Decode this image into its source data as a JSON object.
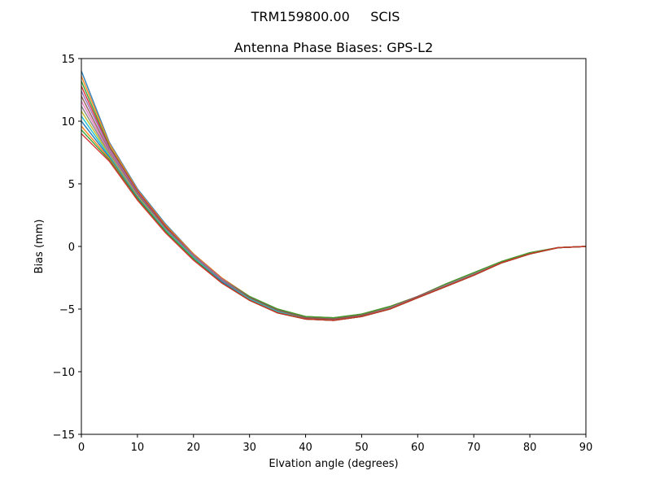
{
  "chart_data": {
    "type": "line",
    "suptitle": "TRM159800.00     SCIS",
    "title": "Antenna Phase Biases: GPS-L2",
    "xlabel": "Elvation angle (degrees)",
    "ylabel": "Bias (mm)",
    "xlim": [
      0,
      90
    ],
    "ylim": [
      -15,
      15
    ],
    "xticks": [
      0,
      10,
      20,
      30,
      40,
      50,
      60,
      70,
      80,
      90
    ],
    "yticks": [
      -15,
      -10,
      -5,
      0,
      5,
      10,
      15
    ],
    "grid": false,
    "legend": false,
    "x": [
      0,
      5,
      10,
      15,
      20,
      25,
      30,
      35,
      40,
      45,
      50,
      55,
      60,
      65,
      70,
      75,
      80,
      85,
      90
    ],
    "series_colors": [
      "#1f77b4",
      "#ff7f0e",
      "#2ca02c",
      "#d62728",
      "#9467bd",
      "#8c564b",
      "#e377c2",
      "#7f7f7f",
      "#bcbd22",
      "#17becf"
    ],
    "series": [
      {
        "values": [
          14.0,
          8.3,
          4.6,
          1.8,
          -0.6,
          -2.5,
          -4.0,
          -5.0,
          -5.6,
          -5.7,
          -5.4,
          -4.8,
          -4.0,
          -3.0,
          -2.1,
          -1.2,
          -0.5,
          -0.1,
          0.0
        ]
      },
      {
        "values": [
          13.6,
          8.2,
          4.5,
          1.7,
          -0.6,
          -2.5,
          -4.0,
          -5.0,
          -5.6,
          -5.7,
          -5.4,
          -4.8,
          -4.0,
          -3.0,
          -2.1,
          -1.2,
          -0.5,
          -0.1,
          0.0
        ]
      },
      {
        "values": [
          13.2,
          8.0,
          4.4,
          1.6,
          -0.7,
          -2.6,
          -4.0,
          -5.0,
          -5.6,
          -5.7,
          -5.4,
          -4.8,
          -4.0,
          -3.0,
          -2.1,
          -1.2,
          -0.5,
          -0.1,
          0.0
        ]
      },
      {
        "values": [
          12.8,
          7.9,
          4.4,
          1.6,
          -0.7,
          -2.6,
          -4.1,
          -5.1,
          -5.7,
          -5.8,
          -5.5,
          -4.9,
          -4.0,
          -3.1,
          -2.2,
          -1.3,
          -0.6,
          -0.1,
          0.0
        ]
      },
      {
        "values": [
          12.4,
          7.8,
          4.3,
          1.5,
          -0.7,
          -2.6,
          -4.1,
          -5.1,
          -5.7,
          -5.8,
          -5.5,
          -4.9,
          -4.0,
          -3.1,
          -2.2,
          -1.3,
          -0.6,
          -0.1,
          0.0
        ]
      },
      {
        "values": [
          12.0,
          7.6,
          4.2,
          1.5,
          -0.8,
          -2.7,
          -4.1,
          -5.1,
          -5.7,
          -5.8,
          -5.5,
          -4.9,
          -4.0,
          -3.1,
          -2.2,
          -1.3,
          -0.6,
          -0.1,
          0.0
        ]
      },
      {
        "values": [
          11.6,
          7.5,
          4.1,
          1.4,
          -0.8,
          -2.7,
          -4.2,
          -5.2,
          -5.8,
          -5.9,
          -5.6,
          -4.9,
          -4.1,
          -3.1,
          -2.2,
          -1.3,
          -0.6,
          -0.1,
          0.0
        ]
      },
      {
        "values": [
          11.2,
          7.4,
          4.1,
          1.4,
          -0.8,
          -2.7,
          -4.2,
          -5.2,
          -5.8,
          -5.9,
          -5.6,
          -4.9,
          -4.1,
          -3.1,
          -2.2,
          -1.3,
          -0.6,
          -0.1,
          0.0
        ]
      },
      {
        "values": [
          10.8,
          7.3,
          4.0,
          1.3,
          -0.9,
          -2.8,
          -4.2,
          -5.2,
          -5.8,
          -5.9,
          -5.6,
          -5.0,
          -4.1,
          -3.2,
          -2.3,
          -1.3,
          -0.6,
          -0.1,
          0.0
        ]
      },
      {
        "values": [
          10.4,
          7.2,
          3.9,
          1.3,
          -0.9,
          -2.8,
          -4.2,
          -5.2,
          -5.8,
          -5.9,
          -5.6,
          -5.0,
          -4.1,
          -3.2,
          -2.3,
          -1.3,
          -0.6,
          -0.1,
          0.0
        ]
      },
      {
        "values": [
          10.0,
          7.1,
          3.9,
          1.2,
          -1.0,
          -2.8,
          -4.3,
          -5.3,
          -5.8,
          -5.9,
          -5.6,
          -5.0,
          -4.1,
          -3.2,
          -2.3,
          -1.3,
          -0.6,
          -0.1,
          0.0
        ]
      },
      {
        "values": [
          9.6,
          7.0,
          3.8,
          1.2,
          -1.0,
          -2.9,
          -4.3,
          -5.3,
          -5.8,
          -5.9,
          -5.6,
          -5.0,
          -4.1,
          -3.2,
          -2.3,
          -1.3,
          -0.6,
          -0.1,
          0.0
        ]
      },
      {
        "values": [
          9.3,
          6.9,
          3.8,
          1.2,
          -1.0,
          -2.9,
          -4.3,
          -5.3,
          -5.8,
          -5.9,
          -5.6,
          -5.0,
          -4.1,
          -3.2,
          -2.3,
          -1.3,
          -0.6,
          -0.1,
          0.0
        ]
      },
      {
        "values": [
          9.0,
          6.8,
          3.7,
          1.1,
          -1.1,
          -2.9,
          -4.3,
          -5.3,
          -5.8,
          -5.9,
          -5.6,
          -5.0,
          -4.1,
          -3.2,
          -2.3,
          -1.3,
          -0.6,
          -0.1,
          0.0
        ]
      }
    ]
  }
}
